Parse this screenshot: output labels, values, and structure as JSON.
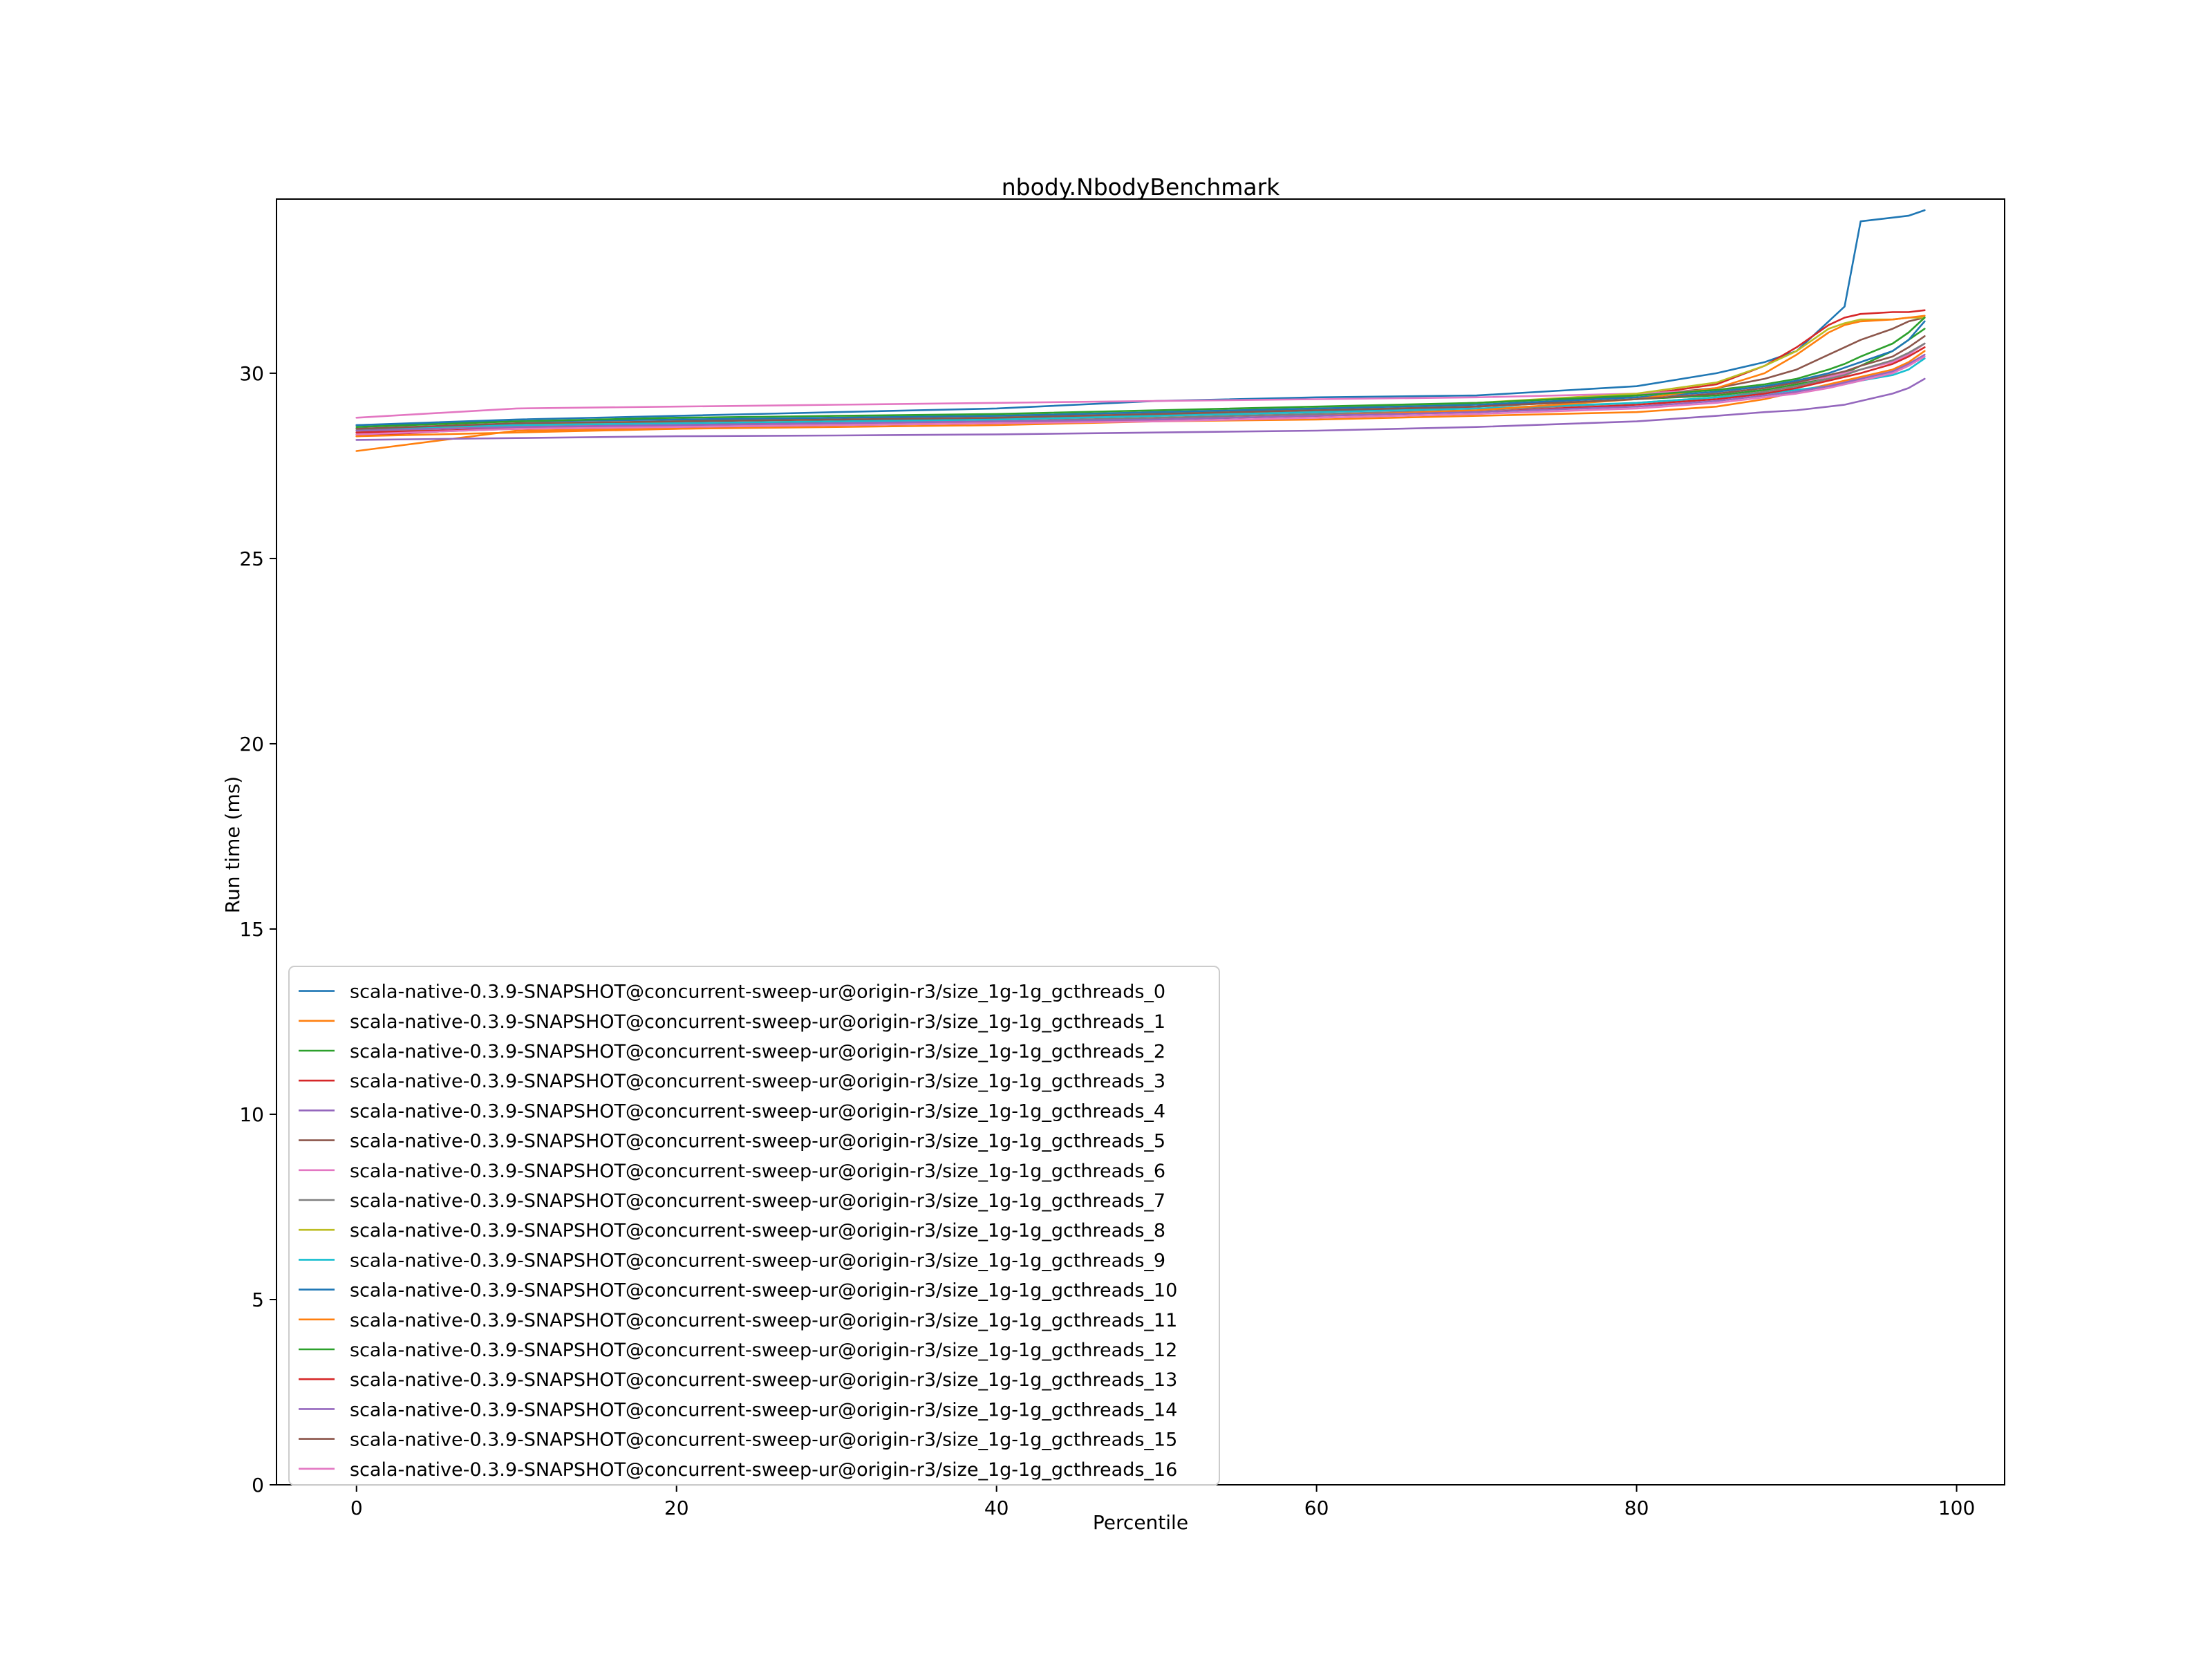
{
  "chart_data": {
    "type": "line",
    "title": "nbody.NbodyBenchmark",
    "xlabel": "Percentile",
    "ylabel": "Run time (ms)",
    "xlim": [
      -5,
      103
    ],
    "ylim": [
      0,
      34.7
    ],
    "xticks": [
      0,
      20,
      40,
      60,
      80,
      100
    ],
    "yticks": [
      0,
      5,
      10,
      15,
      20,
      25,
      30
    ],
    "grid": false,
    "legend_position": "lower-left",
    "x": [
      0,
      10,
      20,
      30,
      40,
      50,
      60,
      70,
      80,
      85,
      88,
      90,
      92,
      93,
      94,
      96,
      97,
      98
    ],
    "series": [
      {
        "name": "scala-native-0.3.9-SNAPSHOT@concurrent-sweep-ur@origin-r3/size_1g-1g_gcthreads_0",
        "color": "#1f77b4",
        "values": [
          28.6,
          28.75,
          28.85,
          28.95,
          29.05,
          29.25,
          29.35,
          29.4,
          29.65,
          30.0,
          30.3,
          30.6,
          31.4,
          31.8,
          34.1,
          34.2,
          34.25,
          34.4
        ]
      },
      {
        "name": "scala-native-0.3.9-SNAPSHOT@concurrent-sweep-ur@origin-r3/size_1g-1g_gcthreads_1",
        "color": "#ff7f0e",
        "values": [
          27.9,
          28.45,
          28.5,
          28.55,
          28.6,
          28.7,
          28.75,
          28.85,
          28.95,
          29.1,
          29.3,
          29.5,
          29.7,
          29.8,
          29.9,
          30.1,
          30.3,
          30.6
        ]
      },
      {
        "name": "scala-native-0.3.9-SNAPSHOT@concurrent-sweep-ur@origin-r3/size_1g-1g_gcthreads_2",
        "color": "#2ca02c",
        "values": [
          28.5,
          28.6,
          28.65,
          28.7,
          28.8,
          28.9,
          29.0,
          29.1,
          29.3,
          29.4,
          29.55,
          29.7,
          29.9,
          30.0,
          30.2,
          30.6,
          30.9,
          31.2
        ]
      },
      {
        "name": "scala-native-0.3.9-SNAPSHOT@concurrent-sweep-ur@origin-r3/size_1g-1g_gcthreads_3",
        "color": "#d62728",
        "values": [
          28.3,
          28.55,
          28.6,
          28.7,
          28.75,
          28.85,
          28.95,
          29.1,
          29.4,
          29.7,
          30.2,
          30.7,
          31.3,
          31.5,
          31.6,
          31.65,
          31.65,
          31.7
        ]
      },
      {
        "name": "scala-native-0.3.9-SNAPSHOT@concurrent-sweep-ur@origin-r3/size_1g-1g_gcthreads_4",
        "color": "#9467bd",
        "values": [
          28.2,
          28.25,
          28.3,
          28.32,
          28.35,
          28.4,
          28.45,
          28.55,
          28.7,
          28.85,
          28.95,
          29.0,
          29.1,
          29.15,
          29.25,
          29.45,
          29.6,
          29.85
        ]
      },
      {
        "name": "scala-native-0.3.9-SNAPSHOT@concurrent-sweep-ur@origin-r3/size_1g-1g_gcthreads_5",
        "color": "#8c564b",
        "values": [
          28.45,
          28.6,
          28.7,
          28.8,
          28.85,
          28.95,
          29.05,
          29.2,
          29.4,
          29.6,
          29.85,
          30.1,
          30.5,
          30.7,
          30.9,
          31.2,
          31.4,
          31.5
        ]
      },
      {
        "name": "scala-native-0.3.9-SNAPSHOT@concurrent-sweep-ur@origin-r3/size_1g-1g_gcthreads_6",
        "color": "#e377c2",
        "values": [
          28.8,
          29.05,
          29.1,
          29.15,
          29.2,
          29.25,
          29.3,
          29.35,
          29.45,
          29.55,
          29.65,
          29.75,
          29.9,
          30.0,
          30.1,
          30.3,
          30.5,
          30.8
        ]
      },
      {
        "name": "scala-native-0.3.9-SNAPSHOT@concurrent-sweep-ur@origin-r3/size_1g-1g_gcthreads_7",
        "color": "#7f7f7f",
        "values": [
          28.35,
          28.5,
          28.6,
          28.65,
          28.7,
          28.8,
          28.9,
          29.0,
          29.2,
          29.35,
          29.5,
          29.65,
          29.85,
          29.95,
          30.1,
          30.35,
          30.55,
          30.8
        ]
      },
      {
        "name": "scala-native-0.3.9-SNAPSHOT@concurrent-sweep-ur@origin-r3/size_1g-1g_gcthreads_8",
        "color": "#bcbd22",
        "values": [
          28.4,
          28.6,
          28.7,
          28.8,
          28.85,
          28.95,
          29.05,
          29.2,
          29.45,
          29.75,
          30.2,
          30.6,
          31.2,
          31.35,
          31.45,
          31.45,
          31.5,
          31.5
        ]
      },
      {
        "name": "scala-native-0.3.9-SNAPSHOT@concurrent-sweep-ur@origin-r3/size_1g-1g_gcthreads_9",
        "color": "#17becf",
        "values": [
          28.5,
          28.6,
          28.65,
          28.7,
          28.75,
          28.85,
          28.95,
          29.05,
          29.2,
          29.35,
          29.45,
          29.55,
          29.65,
          29.7,
          29.8,
          29.95,
          30.1,
          30.4
        ]
      },
      {
        "name": "scala-native-0.3.9-SNAPSHOT@concurrent-sweep-ur@origin-r3/size_1g-1g_gcthreads_10",
        "color": "#1f77b4",
        "values": [
          28.6,
          28.7,
          28.75,
          28.8,
          28.85,
          28.95,
          29.05,
          29.15,
          29.35,
          29.5,
          29.65,
          29.8,
          30.0,
          30.15,
          30.3,
          30.6,
          30.9,
          31.4
        ]
      },
      {
        "name": "scala-native-0.3.9-SNAPSHOT@concurrent-sweep-ur@origin-r3/size_1g-1g_gcthreads_11",
        "color": "#ff7f0e",
        "values": [
          28.3,
          28.4,
          28.5,
          28.6,
          28.65,
          28.75,
          28.85,
          29.0,
          29.3,
          29.6,
          30.0,
          30.5,
          31.1,
          31.3,
          31.4,
          31.45,
          31.5,
          31.55
        ]
      },
      {
        "name": "scala-native-0.3.9-SNAPSHOT@concurrent-sweep-ur@origin-r3/size_1g-1g_gcthreads_12",
        "color": "#2ca02c",
        "values": [
          28.55,
          28.7,
          28.8,
          28.85,
          28.9,
          29.0,
          29.1,
          29.2,
          29.4,
          29.55,
          29.7,
          29.85,
          30.1,
          30.25,
          30.45,
          30.8,
          31.1,
          31.5
        ]
      },
      {
        "name": "scala-native-0.3.9-SNAPSHOT@concurrent-sweep-ur@origin-r3/size_1g-1g_gcthreads_13",
        "color": "#d62728",
        "values": [
          28.4,
          28.5,
          28.55,
          28.6,
          28.65,
          28.75,
          28.85,
          28.95,
          29.15,
          29.3,
          29.45,
          29.6,
          29.8,
          29.9,
          30.0,
          30.25,
          30.45,
          30.7
        ]
      },
      {
        "name": "scala-native-0.3.9-SNAPSHOT@concurrent-sweep-ur@origin-r3/size_1g-1g_gcthreads_14",
        "color": "#9467bd",
        "values": [
          28.45,
          28.55,
          28.6,
          28.65,
          28.7,
          28.75,
          28.85,
          28.95,
          29.1,
          29.25,
          29.4,
          29.5,
          29.65,
          29.75,
          29.85,
          30.05,
          30.25,
          30.5
        ]
      },
      {
        "name": "scala-native-0.3.9-SNAPSHOT@concurrent-sweep-ur@origin-r3/size_1g-1g_gcthreads_15",
        "color": "#8c564b",
        "values": [
          28.5,
          28.65,
          28.7,
          28.75,
          28.8,
          28.9,
          29.0,
          29.1,
          29.3,
          29.45,
          29.6,
          29.75,
          29.95,
          30.05,
          30.2,
          30.45,
          30.7,
          31.0
        ]
      },
      {
        "name": "scala-native-0.3.9-SNAPSHOT@concurrent-sweep-ur@origin-r3/size_1g-1g_gcthreads_16",
        "color": "#e377c2",
        "values": [
          28.35,
          28.5,
          28.55,
          28.6,
          28.65,
          28.7,
          28.8,
          28.9,
          29.05,
          29.2,
          29.35,
          29.45,
          29.6,
          29.7,
          29.8,
          30.0,
          30.2,
          30.45
        ]
      }
    ]
  }
}
